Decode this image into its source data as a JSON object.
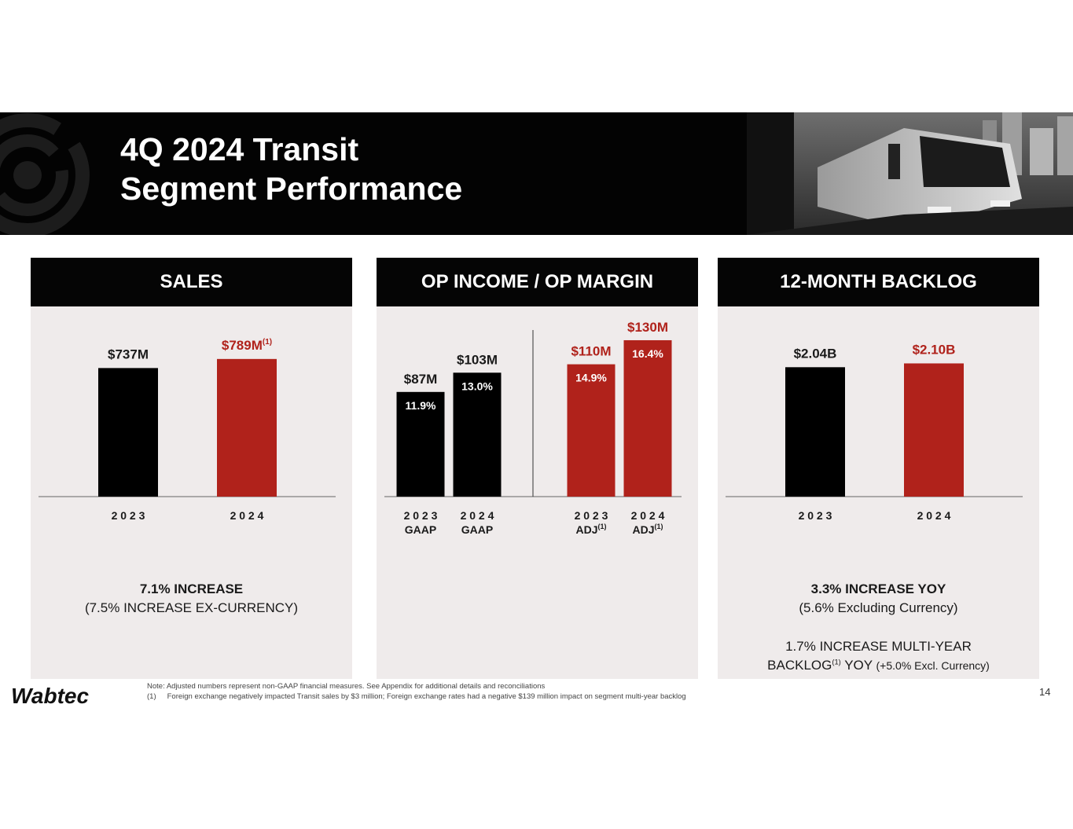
{
  "slide": {
    "title_line1": "4Q 2024 Transit",
    "title_line2": "Segment Performance",
    "page_number": "14",
    "brand": "Wabtec",
    "note": "Note: Adjusted numbers represent non-GAAP financial measures. See Appendix for additional details and reconciliations",
    "footnote_marker": "(1)",
    "footnote": "Foreign exchange negatively impacted Transit sales by $3 million; Foreign exchange rates had a negative $139 million impact on segment multi-year backlog"
  },
  "colors": {
    "black_bar": "#000000",
    "red_bar": "#b0221b",
    "red_text": "#b0221b",
    "panel_bg": "#efebeb"
  },
  "panels": {
    "sales": {
      "header": "SALES",
      "caption_bold": "7.1% INCREASE",
      "caption": "(7.5% INCREASE EX-CURRENCY)"
    },
    "op_income": {
      "header": "OP INCOME / OP MARGIN"
    },
    "backlog": {
      "header": "12-MONTH BACKLOG",
      "caption_bold": "3.3% INCREASE YOY",
      "caption": "(5.6% Excluding Currency)",
      "multi_line1": "1.7% INCREASE MULTI-YEAR",
      "multi_line2_a": "BACKLOG",
      "multi_sup": "(1)",
      "multi_line2_b": " YOY ",
      "multi_line2_c": "(+5.0% Excl. Currency)"
    }
  },
  "chart_data": [
    {
      "type": "bar",
      "title": "SALES",
      "categories": [
        "2 0 2 3",
        "2 0 2 4"
      ],
      "values": [
        737,
        789
      ],
      "unit": "$M",
      "labels": [
        "$737M",
        "$789M"
      ],
      "label_sups": [
        "",
        "(1)"
      ],
      "colors": [
        "#000000",
        "#b0221b"
      ],
      "label_colors": [
        "#1a1a1a",
        "#b0221b"
      ],
      "ylim": [
        0,
        1000
      ]
    },
    {
      "type": "bar",
      "title": "OP INCOME / OP MARGIN",
      "categories": [
        "2 0 2 3",
        "2 0 2 4",
        "2 0 2 3",
        "2 0 2 4"
      ],
      "sublabels": [
        "GAAP",
        "GAAP",
        "ADJ",
        "ADJ"
      ],
      "sublabel_sups": [
        "",
        "",
        "(1)",
        "(1)"
      ],
      "values": [
        87,
        103,
        110,
        130
      ],
      "unit": "$M",
      "labels": [
        "$87M",
        "$103M",
        "$110M",
        "$130M"
      ],
      "margins": [
        "11.9%",
        "13.0%",
        "14.9%",
        "16.4%"
      ],
      "colors": [
        "#000000",
        "#000000",
        "#b0221b",
        "#b0221b"
      ],
      "label_colors": [
        "#1a1a1a",
        "#1a1a1a",
        "#b0221b",
        "#b0221b"
      ],
      "ylim": [
        0,
        145
      ]
    },
    {
      "type": "bar",
      "title": "12-MONTH BACKLOG",
      "categories": [
        "2 0 2 3",
        "2 0 2 4"
      ],
      "values": [
        2.04,
        2.1
      ],
      "unit": "$B",
      "labels": [
        "$2.04B",
        "$2.10B"
      ],
      "colors": [
        "#000000",
        "#b0221b"
      ],
      "label_colors": [
        "#1a1a1a",
        "#b0221b"
      ],
      "ylim": [
        0,
        2.75
      ]
    }
  ]
}
